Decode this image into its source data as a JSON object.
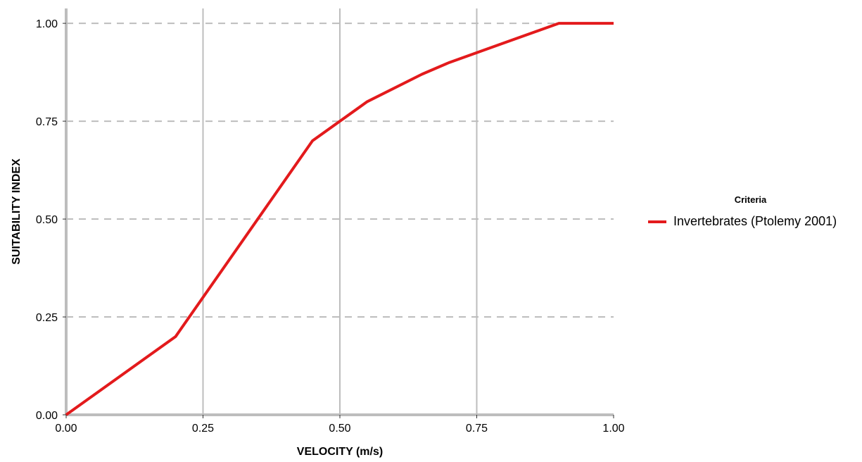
{
  "chart_data": {
    "type": "line",
    "xlabel": "VELOCITY (m/s)",
    "ylabel": "SUITABILITY INDEX",
    "xlim": [
      0,
      1
    ],
    "ylim": [
      0,
      1
    ],
    "x_ticks": [
      "0.00",
      "0.25",
      "0.50",
      "0.75",
      "1.00"
    ],
    "y_ticks": [
      "0.00",
      "0.25",
      "0.50",
      "0.75",
      "1.00"
    ],
    "x_grid": "solid",
    "y_grid": "dashed",
    "legend_position": "right",
    "legend_title": "Criteria",
    "series": [
      {
        "name": "Invertebrates (Ptolemy 2001)",
        "color": "#e31a1c",
        "x": [
          0.0,
          0.2,
          0.45,
          0.55,
          0.65,
          0.7,
          0.8,
          0.9,
          1.0
        ],
        "y": [
          0.0,
          0.2,
          0.7,
          0.8,
          0.87,
          0.9,
          0.95,
          1.0,
          1.0
        ]
      }
    ]
  }
}
